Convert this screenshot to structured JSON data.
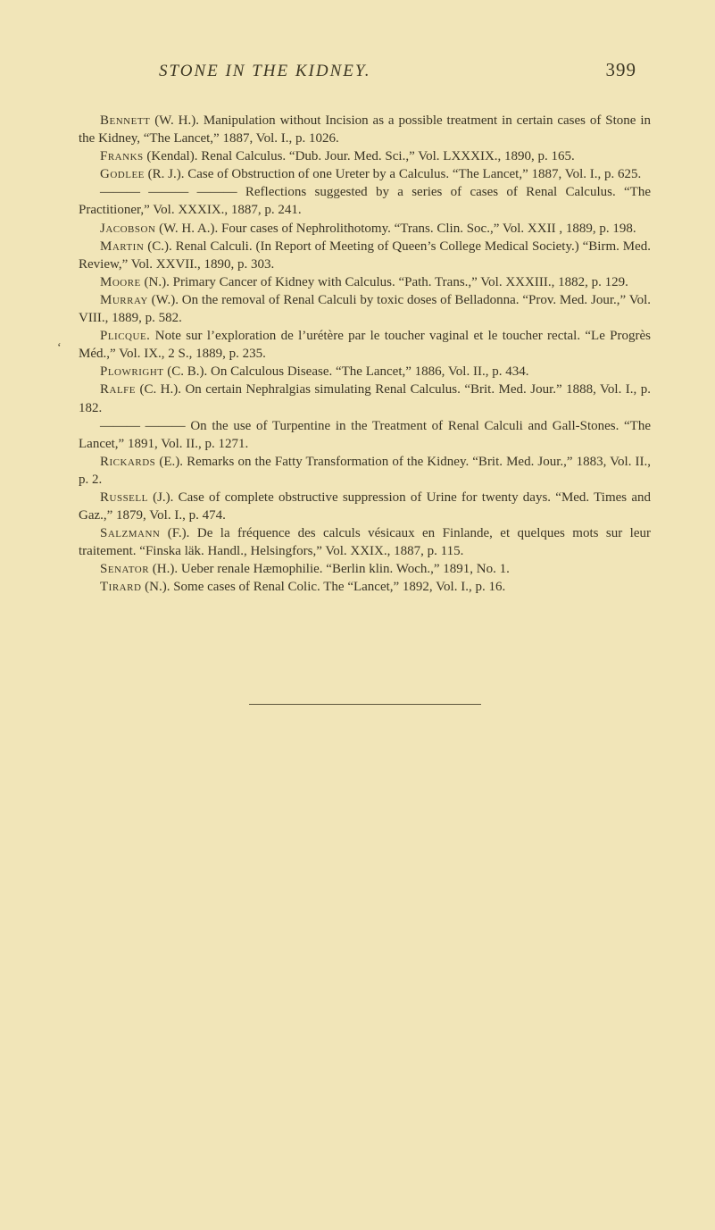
{
  "page": {
    "running_title": "STONE IN THE KIDNEY.",
    "number": "399"
  },
  "typography": {
    "body_fontsize_pt": 11,
    "header_fontsize_pt": 15,
    "line_height": 1.34
  },
  "colors": {
    "background": "#f1e5b8",
    "text": "#3a3424",
    "header": "#3d3723",
    "rule": "#5c553c"
  },
  "entries": [
    {
      "author": "Bennett",
      "initials": "(W. H.).",
      "text": "Manipulation without Incision as a possible treatment in certain cases of Stone in the Kidney, “The Lancet,” 1887, Vol. I., p. 1026."
    },
    {
      "author": "Franks",
      "initials": "(Kendal).",
      "text": "Renal Calculus. “Dub. Jour. Med. Sci.,” Vol. LXXXIX., 1890, p. 165."
    },
    {
      "author": "Godlee",
      "initials": "(R. J.).",
      "text": "Case of Obstruction of one Ureter by a Calculus. “The Lancet,” 1887, Vol. I., p. 625."
    },
    {
      "author": "——— ——— ———",
      "initials": "",
      "text": "Reflections suggested by a series of cases of Renal Calculus. “The Practitioner,” Vol. XXXIX., 1887, p. 241."
    },
    {
      "author": "Jacobson",
      "initials": "(W. H. A.).",
      "text": "Four cases of Nephrolithotomy. “Trans. Clin. Soc.,” Vol. XXII , 1889, p. 198."
    },
    {
      "author": "Martin",
      "initials": "(C.).",
      "text": "Renal Calculi. (In Report of Meeting of Queen’s College Medical Society.) “Birm. Med. Review,” Vol. XXVII., 1890, p. 303."
    },
    {
      "author": "Moore",
      "initials": "(N.).",
      "text": "Primary Cancer of Kidney with Calculus. “Path. Trans.,” Vol. XXXIII., 1882, p. 129."
    },
    {
      "author": "Murray",
      "initials": "(W.).",
      "text": "On the removal of Renal Calculi by toxic doses of Belladonna. “Prov. Med. Jour.,” Vol. VIII., 1889, p. 582."
    },
    {
      "author": "Plicque.",
      "initials": "",
      "text": "Note sur l’exploration de l’urétère par le toucher vaginal et le toucher rectal. “Le Progrès Méd.,” Vol. IX., 2 S., 1889, p. 235."
    },
    {
      "author": "Plowright",
      "initials": "(C. B.).",
      "text": "On Calculous Disease. “The Lancet,” 1886, Vol. II., p. 434."
    },
    {
      "author": "Ralfe",
      "initials": "(C. H.).",
      "text": "On certain Nephralgias simulating Renal Calculus. “Brit. Med. Jour.” 1888, Vol. I., p. 182."
    },
    {
      "author": "——— ———",
      "initials": "",
      "text": "On the use of Turpentine in the Treatment of Renal Calculi and Gall-Stones. “The Lancet,” 1891, Vol. II., p. 1271."
    },
    {
      "author": "Rickards",
      "initials": "(E.).",
      "text": "Remarks on the Fatty Transformation of the Kidney. “Brit. Med. Jour.,” 1883, Vol. II., p. 2."
    },
    {
      "author": "Russell",
      "initials": "(J.).",
      "text": "Case of complete obstructive suppression of Urine for twenty days. “Med. Times and Gaz.,” 1879, Vol. I., p. 474."
    },
    {
      "author": "Salzmann",
      "initials": "(F.).",
      "text": "De la fréquence des calculs vésicaux en Finlande, et quelques mots sur leur traitement. “Finska läk. Handl., Helsingfors,” Vol. XXIX., 1887, p. 115."
    },
    {
      "author": "Senator",
      "initials": "(H.).",
      "text": "Ueber renale Hæmophilie. “Berlin klin. Woch.,” 1891, No. 1."
    },
    {
      "author": "Tirard",
      "initials": "(N.).",
      "text": "Some cases of Renal Colic. The “Lancet,” 1892, Vol. I., p. 16."
    }
  ],
  "margin_tick": "‘"
}
